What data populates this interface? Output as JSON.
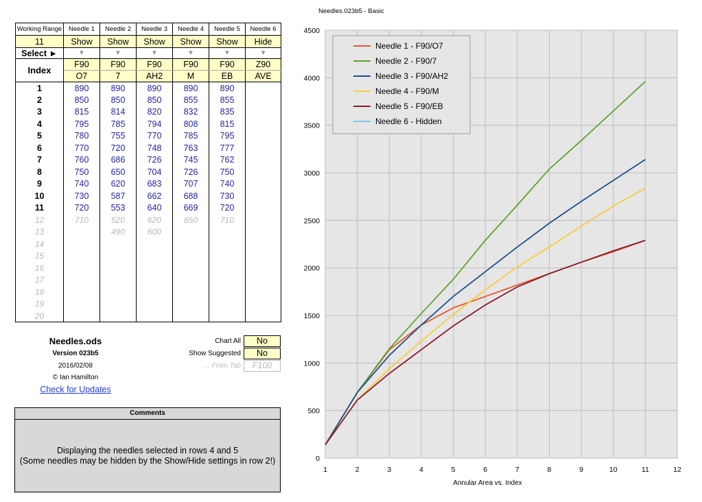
{
  "table": {
    "header_label": "Working Range",
    "needle_headers": [
      "Needle 1",
      "Needle 2",
      "Needle 3",
      "Needle 4",
      "Needle 5",
      "Needle 6"
    ],
    "working_range": "11",
    "visibility": [
      "Show",
      "Show",
      "Show",
      "Show",
      "Show",
      "Hide"
    ],
    "select_label": "Select ►",
    "select_arrow": "▼",
    "index_label": "Index",
    "code_line1": [
      "F90",
      "F90",
      "F90",
      "F90",
      "F90",
      "Z90"
    ],
    "code_line2": [
      "O7",
      "7",
      "AH2",
      "M",
      "EB",
      "AVE"
    ],
    "rows": [
      {
        "index": "1",
        "values": [
          "890",
          "890",
          "890",
          "890",
          "890",
          ""
        ]
      },
      {
        "index": "2",
        "values": [
          "850",
          "850",
          "850",
          "855",
          "855",
          ""
        ]
      },
      {
        "index": "3",
        "values": [
          "815",
          "814",
          "820",
          "832",
          "835",
          ""
        ]
      },
      {
        "index": "4",
        "values": [
          "795",
          "785",
          "794",
          "808",
          "815",
          ""
        ]
      },
      {
        "index": "5",
        "values": [
          "780",
          "755",
          "770",
          "785",
          "795",
          ""
        ]
      },
      {
        "index": "6",
        "values": [
          "770",
          "720",
          "748",
          "763",
          "777",
          ""
        ]
      },
      {
        "index": "7",
        "values": [
          "760",
          "686",
          "726",
          "745",
          "762",
          ""
        ]
      },
      {
        "index": "8",
        "values": [
          "750",
          "650",
          "704",
          "726",
          "750",
          ""
        ]
      },
      {
        "index": "9",
        "values": [
          "740",
          "620",
          "683",
          "707",
          "740",
          ""
        ]
      },
      {
        "index": "10",
        "values": [
          "730",
          "587",
          "662",
          "688",
          "730",
          ""
        ]
      },
      {
        "index": "11",
        "values": [
          "720",
          "553",
          "640",
          "669",
          "720",
          ""
        ]
      },
      {
        "index": "12",
        "values": [
          "710",
          "520",
          "620",
          "650",
          "710",
          ""
        ]
      },
      {
        "index": "13",
        "values": [
          "",
          "490",
          "600",
          "",
          "",
          ""
        ]
      },
      {
        "index": "14",
        "values": [
          "",
          "",
          "",
          "",
          "",
          ""
        ]
      },
      {
        "index": "15",
        "values": [
          "",
          "",
          "",
          "",
          "",
          ""
        ]
      },
      {
        "index": "16",
        "values": [
          "",
          "",
          "",
          "",
          "",
          ""
        ]
      },
      {
        "index": "17",
        "values": [
          "",
          "",
          "",
          "",
          "",
          ""
        ]
      },
      {
        "index": "18",
        "values": [
          "",
          "",
          "",
          "",
          "",
          ""
        ]
      },
      {
        "index": "19",
        "values": [
          "",
          "",
          "",
          "",
          "",
          ""
        ]
      },
      {
        "index": "20",
        "values": [
          "",
          "",
          "",
          "",
          "",
          ""
        ]
      }
    ]
  },
  "info": {
    "file_name": "Needles.ods",
    "version": "Version 023b5",
    "date": "2016/02/08",
    "author": "© Ian Hamilton",
    "update_link": "Check for Updates"
  },
  "options": {
    "chart_all_label": "Chart All",
    "chart_all_value": "No",
    "show_suggested_label": "Show Suggested",
    "show_suggested_value": "No",
    "from_tab_label": "… From Tab",
    "from_tab_value": "F100"
  },
  "comments": {
    "title": "Comments",
    "line1": "Displaying the needles selected in rows 4 and 5",
    "line2": "(Some needles may be hidden by the Show/Hide settings in row 2!)"
  },
  "colors": {
    "input_yellow": "#ffffc8",
    "value_blue": "#1f1fa0",
    "link_blue": "#1f3fd0",
    "chart_bg": "#e6e6e6"
  },
  "chart_data": {
    "type": "line",
    "title": "Needles.023b5 - Basic",
    "xlabel": "Annular Area vs. Index",
    "ylabel": "",
    "xlim": [
      1,
      12
    ],
    "ylim": [
      0,
      4500
    ],
    "x_ticks": [
      1,
      2,
      3,
      4,
      5,
      6,
      7,
      8,
      9,
      10,
      11,
      12
    ],
    "y_ticks": [
      0,
      500,
      1000,
      1500,
      2000,
      2500,
      3000,
      3500,
      4000,
      4500
    ],
    "grid": true,
    "legend_position": "top-left",
    "series": [
      {
        "name": "Needle 1 - F90/O7",
        "color": "#e8572a",
        "x": [
          1,
          2,
          3,
          4,
          5,
          6,
          7,
          8,
          9,
          10,
          11
        ],
        "y": [
          140,
          690,
          1140,
          1400,
          1580,
          1700,
          1820,
          1940,
          2060,
          2170,
          2290
        ]
      },
      {
        "name": "Needle 2 - F90/7",
        "color": "#5ea32d",
        "x": [
          1,
          2,
          3,
          4,
          5,
          6,
          7,
          8,
          9,
          10,
          11
        ],
        "y": [
          140,
          690,
          1150,
          1520,
          1880,
          2290,
          2660,
          3040,
          3340,
          3650,
          3960
        ]
      },
      {
        "name": "Needle 3 - F90/AH2",
        "color": "#1f4e8c",
        "x": [
          1,
          2,
          3,
          4,
          5,
          6,
          7,
          8,
          9,
          10,
          11
        ],
        "y": [
          140,
          690,
          1080,
          1400,
          1700,
          1960,
          2220,
          2470,
          2700,
          2920,
          3140
        ]
      },
      {
        "name": "Needle 4 - F90/M",
        "color": "#f8cc3a",
        "x": [
          1,
          2,
          3,
          4,
          5,
          6,
          7,
          8,
          9,
          10,
          11
        ],
        "y": [
          140,
          610,
          940,
          1230,
          1510,
          1770,
          2010,
          2220,
          2440,
          2650,
          2840
        ]
      },
      {
        "name": "Needle 5 - F90/EB",
        "color": "#8a1a2e",
        "x": [
          1,
          2,
          3,
          4,
          5,
          6,
          7,
          8,
          9,
          10,
          11
        ],
        "y": [
          140,
          610,
          890,
          1140,
          1390,
          1610,
          1800,
          1940,
          2060,
          2180,
          2290
        ]
      },
      {
        "name": "Needle 6 - Hidden",
        "color": "#7cc8ec",
        "x": [],
        "y": []
      }
    ]
  }
}
